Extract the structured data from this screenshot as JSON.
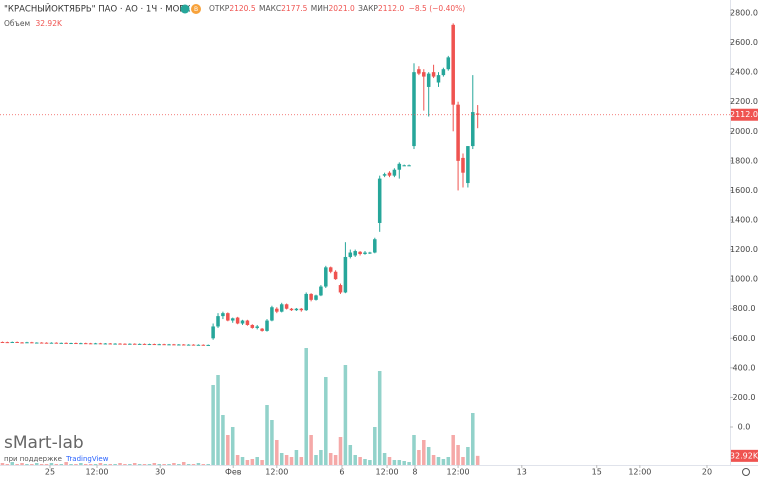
{
  "chart_data": {
    "type": "candlestick",
    "title": "\"КРАСНЫЙОКТЯБРЬ\" ПАО · АО · 1Ч · MOEX",
    "badge": "B",
    "ohlc_names": [
      "ОТКР",
      "МАКС",
      "МИН",
      "ЗАКР"
    ],
    "ohlc_labels": [
      "2120.5",
      "2177.5",
      "2021.0",
      "2112.0"
    ],
    "change": "−8.5 (−0.40%)",
    "watermark": "sMart-lab",
    "credit": "при поддержке",
    "credit_link": "TradingView",
    "up_color": "#26a69a",
    "down_color": "#ef5350",
    "x": [
      0,
      1,
      2,
      3,
      4,
      5,
      6,
      7,
      8,
      9,
      10,
      11,
      12,
      13,
      14,
      15,
      16,
      17,
      18,
      19,
      20,
      21,
      22,
      23,
      24,
      25,
      26,
      27,
      28,
      29,
      30,
      31,
      32,
      33,
      34,
      35,
      36,
      37,
      38,
      39,
      40,
      41,
      42,
      43,
      44,
      45,
      46,
      47,
      48,
      49,
      50,
      51,
      52,
      53,
      54,
      55,
      56,
      57,
      58,
      59,
      60,
      61,
      62,
      63,
      64,
      65,
      66,
      67,
      68,
      69,
      70,
      71,
      72,
      73,
      74,
      75,
      76,
      77,
      78,
      79,
      80,
      81,
      82,
      83,
      84,
      85,
      86,
      87,
      88,
      89,
      90,
      91,
      92,
      93,
      94,
      95,
      96,
      97
    ],
    "open": [
      575,
      574,
      573,
      575,
      572,
      571,
      573,
      570,
      571,
      570,
      569,
      570,
      568,
      569,
      567,
      568,
      566,
      567,
      566,
      565,
      566,
      564,
      565,
      563,
      564,
      563,
      562,
      563,
      561,
      562,
      560,
      561,
      559,
      560,
      558,
      559,
      557,
      558,
      556,
      557,
      555,
      556,
      554,
      600,
      680,
      750,
      770,
      720,
      740,
      700,
      720,
      690,
      670,
      665,
      650,
      720,
      800,
      780,
      830,
      800,
      790,
      800,
      790,
      900,
      860,
      890,
      950,
      1080,
      1050,
      960,
      910,
      1150,
      1160,
      1185,
      1170,
      1180,
      1180,
      1380,
      1700,
      1720,
      1700,
      1740,
      1770,
      1770,
      1900,
      2420,
      2400,
      2300,
      2400,
      2330,
      2380,
      2420,
      2720,
      2180,
      1820,
      1650,
      1900,
      2120.5
    ],
    "high": [
      578,
      577,
      578,
      578,
      575,
      576,
      576,
      573,
      574,
      573,
      573,
      573,
      571,
      572,
      570,
      571,
      570,
      570,
      569,
      569,
      569,
      568,
      568,
      567,
      567,
      566,
      566,
      566,
      565,
      565,
      564,
      564,
      563,
      563,
      562,
      562,
      561,
      561,
      560,
      560,
      559,
      559,
      558,
      700,
      770,
      780,
      775,
      740,
      745,
      725,
      725,
      695,
      690,
      670,
      730,
      820,
      810,
      840,
      835,
      805,
      805,
      805,
      910,
      905,
      895,
      960,
      1090,
      1085,
      1060,
      970,
      1250,
      1200,
      1200,
      1190,
      1190,
      1185,
      1280,
      1700,
      1720,
      1730,
      1750,
      1790,
      1775,
      1775,
      2460,
      2440,
      2420,
      2400,
      2450,
      2400,
      2430,
      2510,
      2730,
      2200,
      1850,
      1900,
      2380,
      2177.5
    ],
    "low": [
      571,
      570,
      570,
      569,
      568,
      568,
      567,
      567,
      567,
      566,
      566,
      565,
      565,
      564,
      564,
      563,
      563,
      563,
      562,
      562,
      561,
      561,
      560,
      560,
      560,
      559,
      559,
      558,
      558,
      557,
      557,
      556,
      556,
      555,
      555,
      554,
      554,
      553,
      553,
      552,
      552,
      551,
      551,
      590,
      670,
      730,
      715,
      705,
      695,
      690,
      685,
      665,
      660,
      645,
      645,
      715,
      770,
      775,
      795,
      785,
      785,
      780,
      785,
      850,
      855,
      885,
      940,
      1040,
      995,
      900,
      905,
      1140,
      1150,
      1160,
      1165,
      1170,
      1175,
      1320,
      1690,
      1690,
      1690,
      1680,
      1765,
      1765,
      1880,
      2380,
      2140,
      2100,
      2360,
      2300,
      2370,
      2410,
      2000,
      1600,
      1620,
      1620,
      1880,
      2021
    ],
    "close": [
      574,
      573,
      575,
      572,
      571,
      573,
      570,
      571,
      570,
      569,
      570,
      568,
      569,
      567,
      568,
      566,
      567,
      566,
      565,
      566,
      564,
      565,
      563,
      564,
      563,
      562,
      563,
      561,
      562,
      560,
      561,
      559,
      560,
      558,
      559,
      557,
      558,
      556,
      557,
      555,
      556,
      554,
      555,
      680,
      750,
      770,
      720,
      735,
      700,
      720,
      690,
      670,
      680,
      650,
      720,
      810,
      780,
      830,
      800,
      790,
      800,
      790,
      900,
      860,
      890,
      950,
      1080,
      1050,
      1000,
      910,
      1150,
      1180,
      1190,
      1170,
      1180,
      1180,
      1270,
      1680,
      1710,
      1700,
      1740,
      1780,
      1770,
      1770,
      2400,
      2390,
      2370,
      2390,
      2370,
      2380,
      2420,
      2500,
      2180,
      1800,
      1720,
      1900,
      2130,
      2112
    ],
    "volume": {
      "name": "Объем",
      "up_color": "#92d2ca",
      "down_color": "#f5a9a8",
      "values": [
        7200,
        3600,
        10800,
        3600,
        7200,
        3600,
        3600,
        7200,
        3600,
        3600,
        7200,
        3600,
        3600,
        10800,
        3600,
        3600,
        7200,
        3600,
        3600,
        3600,
        7200,
        3600,
        3600,
        3600,
        7200,
        3600,
        3600,
        7200,
        3600,
        3600,
        3600,
        7200,
        3600,
        3600,
        3600,
        7200,
        3600,
        10800,
        3600,
        3600,
        7200,
        3600,
        3600,
        288000,
        324000,
        180000,
        108000,
        136800,
        36000,
        28800,
        18000,
        21600,
        28800,
        18000,
        216000,
        162000,
        90000,
        43200,
        36000,
        28800,
        54000,
        28800,
        421200,
        108000,
        36000,
        54000,
        316800,
        43200,
        36000,
        100800,
        360000,
        72000,
        36000,
        28800,
        21600,
        18000,
        136800,
        338400,
        43200,
        28800,
        18000,
        18000,
        14400,
        10800,
        108000,
        54000,
        90000,
        64800,
        36000,
        28800,
        21600,
        28800,
        108000,
        72000,
        28800,
        64800,
        187200,
        32920
      ],
      "last_label": "32.92K"
    },
    "xlim": [
      -0.5,
      148.5
    ],
    "xticks": [
      {
        "value": 9.7,
        "label": "25"
      },
      {
        "value": 19.3,
        "label": "12:00"
      },
      {
        "value": 32.2,
        "label": "30"
      },
      {
        "value": 47.1,
        "label": "Фев"
      },
      {
        "value": 56.0,
        "label": "12:00"
      },
      {
        "value": 69.3,
        "label": "6"
      },
      {
        "value": 78.5,
        "label": "12:00"
      },
      {
        "value": 84.2,
        "label": "8"
      },
      {
        "value": 93.0,
        "label": "12:00"
      },
      {
        "value": 106.0,
        "label": "13"
      },
      {
        "value": 121.3,
        "label": "15"
      },
      {
        "value": 130.1,
        "label": "12:00"
      },
      {
        "value": 143.8,
        "label": "20"
      }
    ],
    "ylim": [
      -257,
      2888
    ],
    "yticks": [
      {
        "value": 0,
        "label": "0.0"
      },
      {
        "value": 200,
        "label": "200.0"
      },
      {
        "value": 400,
        "label": "400.0"
      },
      {
        "value": 600,
        "label": "600.0"
      },
      {
        "value": 800,
        "label": "800.0"
      },
      {
        "value": 1000,
        "label": "1000.0"
      },
      {
        "value": 1200,
        "label": "1200.0"
      },
      {
        "value": 1400,
        "label": "1400.0"
      },
      {
        "value": 1600,
        "label": "1600.0"
      },
      {
        "value": 1800,
        "label": "1800.0"
      },
      {
        "value": 2000,
        "label": "2000.0"
      },
      {
        "value": 2200,
        "label": "2200.0"
      },
      {
        "value": 2400,
        "label": "2400.0"
      },
      {
        "value": 2600,
        "label": "2600.0"
      },
      {
        "value": 2800,
        "label": "2800.0"
      }
    ],
    "y2lim": [
      0,
      450000
    ]
  }
}
